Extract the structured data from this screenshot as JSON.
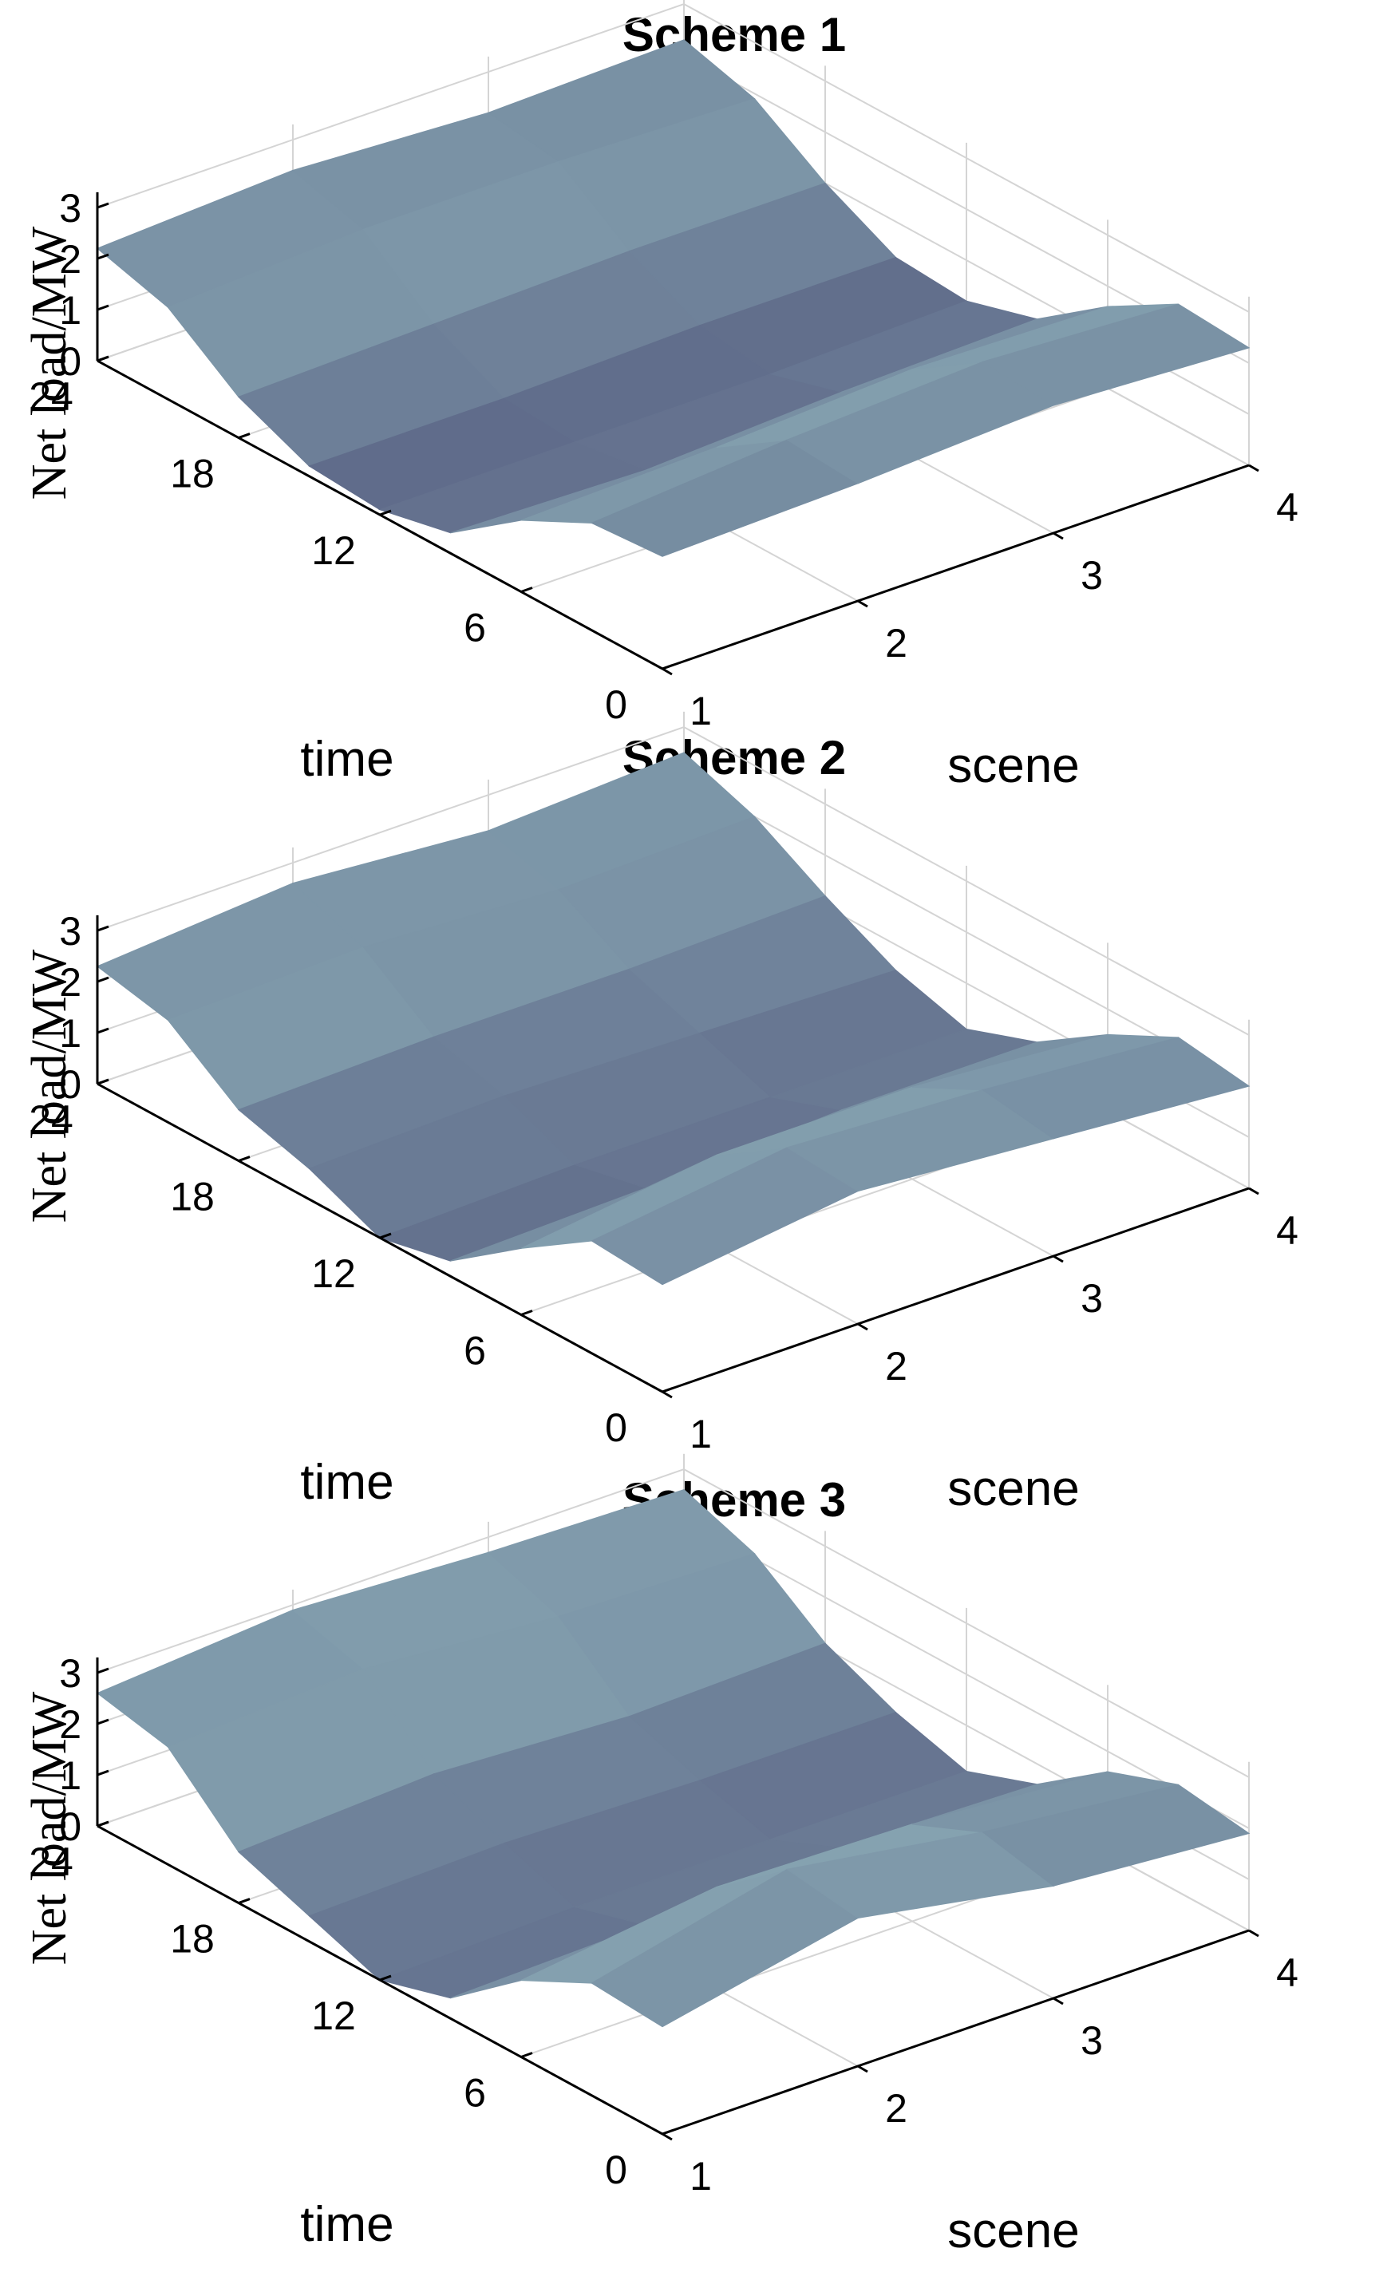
{
  "chart_data": [
    {
      "type": "surface3d",
      "title": "Scheme 1",
      "xlabel": "scene",
      "ylabel": "time",
      "zlabel": "Net load/MW",
      "x_ticks": [
        "1",
        "2",
        "3",
        "4"
      ],
      "y_ticks": [
        "0",
        "6",
        "12",
        "18",
        "24"
      ],
      "z_ticks": [
        "0",
        "1",
        "2",
        "3"
      ],
      "xlim": [
        1,
        4
      ],
      "ylim": [
        0,
        24
      ],
      "zlim": [
        0,
        3
      ],
      "grid": true,
      "colors": {
        "low": "#545a7e",
        "high": "#9cc4c8"
      },
      "scenes": [
        1,
        2,
        3,
        4
      ],
      "time": [
        0,
        3,
        6,
        9,
        12,
        15,
        18,
        21,
        24
      ],
      "z": [
        [
          2.2,
          2.1,
          1.4,
          0.4,
          0.1,
          0.2,
          0.8,
          1.8,
          2.2
        ],
        [
          2.3,
          2.4,
          1.5,
          0.3,
          0.1,
          0.2,
          0.9,
          2.0,
          2.4
        ],
        [
          2.5,
          2.6,
          1.7,
          0.5,
          0.1,
          0.3,
          1.0,
          2.0,
          2.2
        ],
        [
          2.3,
          2.4,
          1.6,
          0.6,
          0.2,
          0.3,
          1.0,
          1.9,
          2.3
        ]
      ]
    },
    {
      "type": "surface3d",
      "title": "Scheme 2",
      "xlabel": "scene",
      "ylabel": "time",
      "zlabel": "Net load/MW",
      "x_ticks": [
        "1",
        "2",
        "3",
        "4"
      ],
      "y_ticks": [
        "0",
        "6",
        "12",
        "18",
        "24"
      ],
      "z_ticks": [
        "0",
        "1",
        "2",
        "3"
      ],
      "xlim": [
        1,
        4
      ],
      "ylim": [
        0,
        24
      ],
      "zlim": [
        0,
        3
      ],
      "grid": true,
      "colors": {
        "low": "#545a7e",
        "high": "#9cc4c8"
      },
      "scenes": [
        1,
        2,
        3,
        4
      ],
      "time": [
        0,
        3,
        6,
        9,
        12,
        15,
        18,
        21,
        24
      ],
      "z": [
        [
          2.1,
          2.2,
          1.3,
          0.3,
          0.0,
          0.6,
          1.0,
          2.0,
          2.3
        ],
        [
          2.6,
          2.7,
          1.8,
          0.4,
          0.1,
          0.7,
          1.1,
          2.1,
          2.6
        ],
        [
          2.3,
          2.5,
          1.8,
          0.6,
          0.1,
          0.6,
          1.1,
          1.9,
          2.3
        ],
        [
          2.0,
          2.2,
          1.5,
          0.6,
          0.1,
          0.5,
          1.2,
          2.0,
          2.5
        ]
      ]
    },
    {
      "type": "surface3d",
      "title": "Scheme 3",
      "xlabel": "scene",
      "ylabel": "time",
      "zlabel": "Net load/MW",
      "x_ticks": [
        "1",
        "2",
        "3",
        "4"
      ],
      "y_ticks": [
        "0",
        "6",
        "12",
        "18",
        "24"
      ],
      "z_ticks": [
        "0",
        "1",
        "2",
        "3"
      ],
      "xlim": [
        1,
        4
      ],
      "ylim": [
        0,
        24
      ],
      "zlim": [
        0,
        3
      ],
      "grid": true,
      "colors": {
        "low": "#545a7e",
        "high": "#9cc4c8"
      },
      "scenes": [
        1,
        2,
        3,
        4
      ],
      "time": [
        0,
        3,
        6,
        9,
        12,
        15,
        18,
        21,
        24
      ],
      "z": [
        [
          2.1,
          2.2,
          1.5,
          0.4,
          0.0,
          0.5,
          1.0,
          2.3,
          2.6
        ],
        [
          2.9,
          3.1,
          2.0,
          0.5,
          0.1,
          0.6,
          1.2,
          2.5,
          2.9
        ],
        [
          2.2,
          2.5,
          1.9,
          0.7,
          0.1,
          0.5,
          1.0,
          2.2,
          2.7
        ],
        [
          1.9,
          2.1,
          1.6,
          0.6,
          0.1,
          0.5,
          1.1,
          2.1,
          2.6
        ]
      ]
    }
  ]
}
